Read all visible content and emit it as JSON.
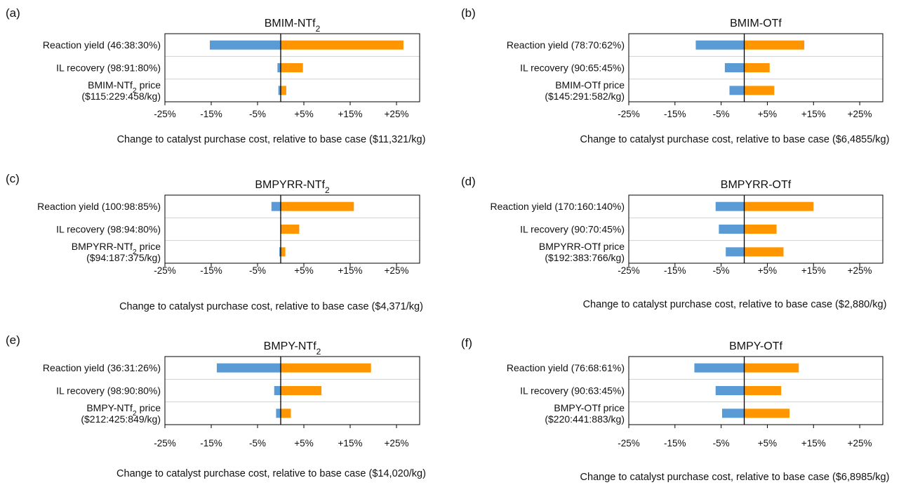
{
  "colors": {
    "low_bar": "#5b9bd5",
    "high_bar": "#ff9600",
    "frame": "#000000",
    "row_divider": "#d0d0d0"
  },
  "chart_data": [
    {
      "type": "bar",
      "orientation": "horizontal-tornado",
      "panel": "(a)",
      "title": "BMIM-NTf2",
      "title_parts": [
        "BMIM-NTf",
        "2",
        ""
      ],
      "xlabel": "Change to catalyst purchase cost, relative to base case ($11,321/kg)",
      "xlim": [
        -25,
        30
      ],
      "xticks": [
        "-25%",
        "-15%",
        "-5%",
        "+5%",
        "+15%",
        "+25%"
      ],
      "categories": [
        {
          "lines": [
            [
              "Reaction yield (46:38:30%)"
            ]
          ]
        },
        {
          "lines": [
            [
              "IL recovery (98:91:80%)"
            ]
          ]
        },
        {
          "lines": [
            [
              "BMIM-NTf",
              "2",
              " price"
            ],
            [
              "($115:229:458/kg)"
            ]
          ]
        }
      ],
      "series": [
        {
          "values": [
            -15.3,
            -0.7,
            -0.5
          ]
        },
        {
          "values": [
            26.5,
            4.8,
            1.2
          ]
        }
      ]
    },
    {
      "type": "bar",
      "orientation": "horizontal-tornado",
      "panel": "(b)",
      "title": "BMIM-OTf",
      "title_parts": [
        "BMIM-OTf",
        "",
        ""
      ],
      "xlabel": "Change to catalyst purchase cost, relative to base case ($6,4855/kg)",
      "xlim": [
        -25,
        30
      ],
      "xticks": [
        "-25%",
        "-15%",
        "-5%",
        "+5%",
        "+15%",
        "+25%"
      ],
      "categories": [
        {
          "lines": [
            [
              "Reaction yield (78:70:62%)"
            ]
          ]
        },
        {
          "lines": [
            [
              "IL recovery (90:65:45%)"
            ]
          ]
        },
        {
          "lines": [
            [
              "BMIM-OTf price"
            ],
            [
              "($145:291:582/kg)"
            ]
          ]
        }
      ],
      "series": [
        {
          "values": [
            -10.5,
            -4.2,
            -3.2
          ]
        },
        {
          "values": [
            13.0,
            5.5,
            6.5
          ]
        }
      ]
    },
    {
      "type": "bar",
      "orientation": "horizontal-tornado",
      "panel": "(c)",
      "title": "BMPYRR-NTf2",
      "title_parts": [
        "BMPYRR-NTf",
        "2",
        ""
      ],
      "xlabel": "Change to catalyst purchase cost, relative to base case ($4,371/kg)",
      "xlim": [
        -25,
        30
      ],
      "xticks": [
        "-25%",
        "-15%",
        "-5%",
        "+5%",
        "+15%",
        "+25%"
      ],
      "categories": [
        {
          "lines": [
            [
              "Reaction yield (100:98:85%)"
            ]
          ]
        },
        {
          "lines": [
            [
              "IL recovery (98:94:80%)"
            ]
          ]
        },
        {
          "lines": [
            [
              "BMPYRR-NTf",
              "2",
              " price"
            ],
            [
              "($94:187:375/kg)"
            ]
          ]
        }
      ],
      "series": [
        {
          "values": [
            -2.0,
            0,
            -0.3
          ]
        },
        {
          "values": [
            15.8,
            4.0,
            1.0
          ]
        }
      ]
    },
    {
      "type": "bar",
      "orientation": "horizontal-tornado",
      "panel": "(d)",
      "title": "BMPYRR-OTf",
      "title_parts": [
        "BMPYRR-OTf",
        "",
        ""
      ],
      "xlabel": "Change to catalyst purchase cost, relative to base case ($2,880/kg)",
      "xlim": [
        -25,
        30
      ],
      "xticks": [
        "-25%",
        "-15%",
        "-5%",
        "+5%",
        "+15%",
        "+25%"
      ],
      "categories": [
        {
          "lines": [
            [
              "Reaction yield (170:160:140%)"
            ]
          ]
        },
        {
          "lines": [
            [
              "IL recovery (90:70:45%)"
            ]
          ]
        },
        {
          "lines": [
            [
              "BMPYRR-OTf price"
            ],
            [
              "($192:383:766/kg)"
            ]
          ]
        }
      ],
      "series": [
        {
          "values": [
            -6.2,
            -5.5,
            -4.0
          ]
        },
        {
          "values": [
            15.0,
            7.0,
            8.5
          ]
        }
      ]
    },
    {
      "type": "bar",
      "orientation": "horizontal-tornado",
      "panel": "(e)",
      "title": "BMPY-NTf2",
      "title_parts": [
        "BMPY-NTf",
        "2",
        ""
      ],
      "xlabel": "Change to catalyst purchase cost, relative to base case ($14,020/kg)",
      "xlim": [
        -25,
        30
      ],
      "xticks": [
        "-25%",
        "-15%",
        "-5%",
        "+5%",
        "+15%",
        "+25%"
      ],
      "categories": [
        {
          "lines": [
            [
              "Reaction yield (36:31:26%)"
            ]
          ]
        },
        {
          "lines": [
            [
              "IL recovery (98:90:80%)"
            ]
          ]
        },
        {
          "lines": [
            [
              "BMPY-NTf",
              "2",
              " price"
            ],
            [
              "($212:425:849/kg)"
            ]
          ]
        }
      ],
      "series": [
        {
          "values": [
            -13.8,
            -1.4,
            -1.0
          ]
        },
        {
          "values": [
            19.5,
            8.8,
            2.2
          ]
        }
      ]
    },
    {
      "type": "bar",
      "orientation": "horizontal-tornado",
      "panel": "(f)",
      "title": "BMPY-OTf",
      "title_parts": [
        "BMPY-OTf",
        "",
        ""
      ],
      "xlabel": "Change to catalyst purchase cost, relative to base case ($6,8985/kg)",
      "xlim": [
        -25,
        30
      ],
      "xticks": [
        "-25%",
        "-15%",
        "-5%",
        "+5%",
        "+15%",
        "+25%"
      ],
      "categories": [
        {
          "lines": [
            [
              "Reaction yield (76:68:61%)"
            ]
          ]
        },
        {
          "lines": [
            [
              "IL recovery (90:63:45%)"
            ]
          ]
        },
        {
          "lines": [
            [
              "BMPY-OTf price"
            ],
            [
              "($220:441:883/kg)"
            ]
          ]
        }
      ],
      "series": [
        {
          "values": [
            -10.8,
            -6.2,
            -4.8
          ]
        },
        {
          "values": [
            11.8,
            8.0,
            9.8
          ]
        }
      ]
    }
  ]
}
